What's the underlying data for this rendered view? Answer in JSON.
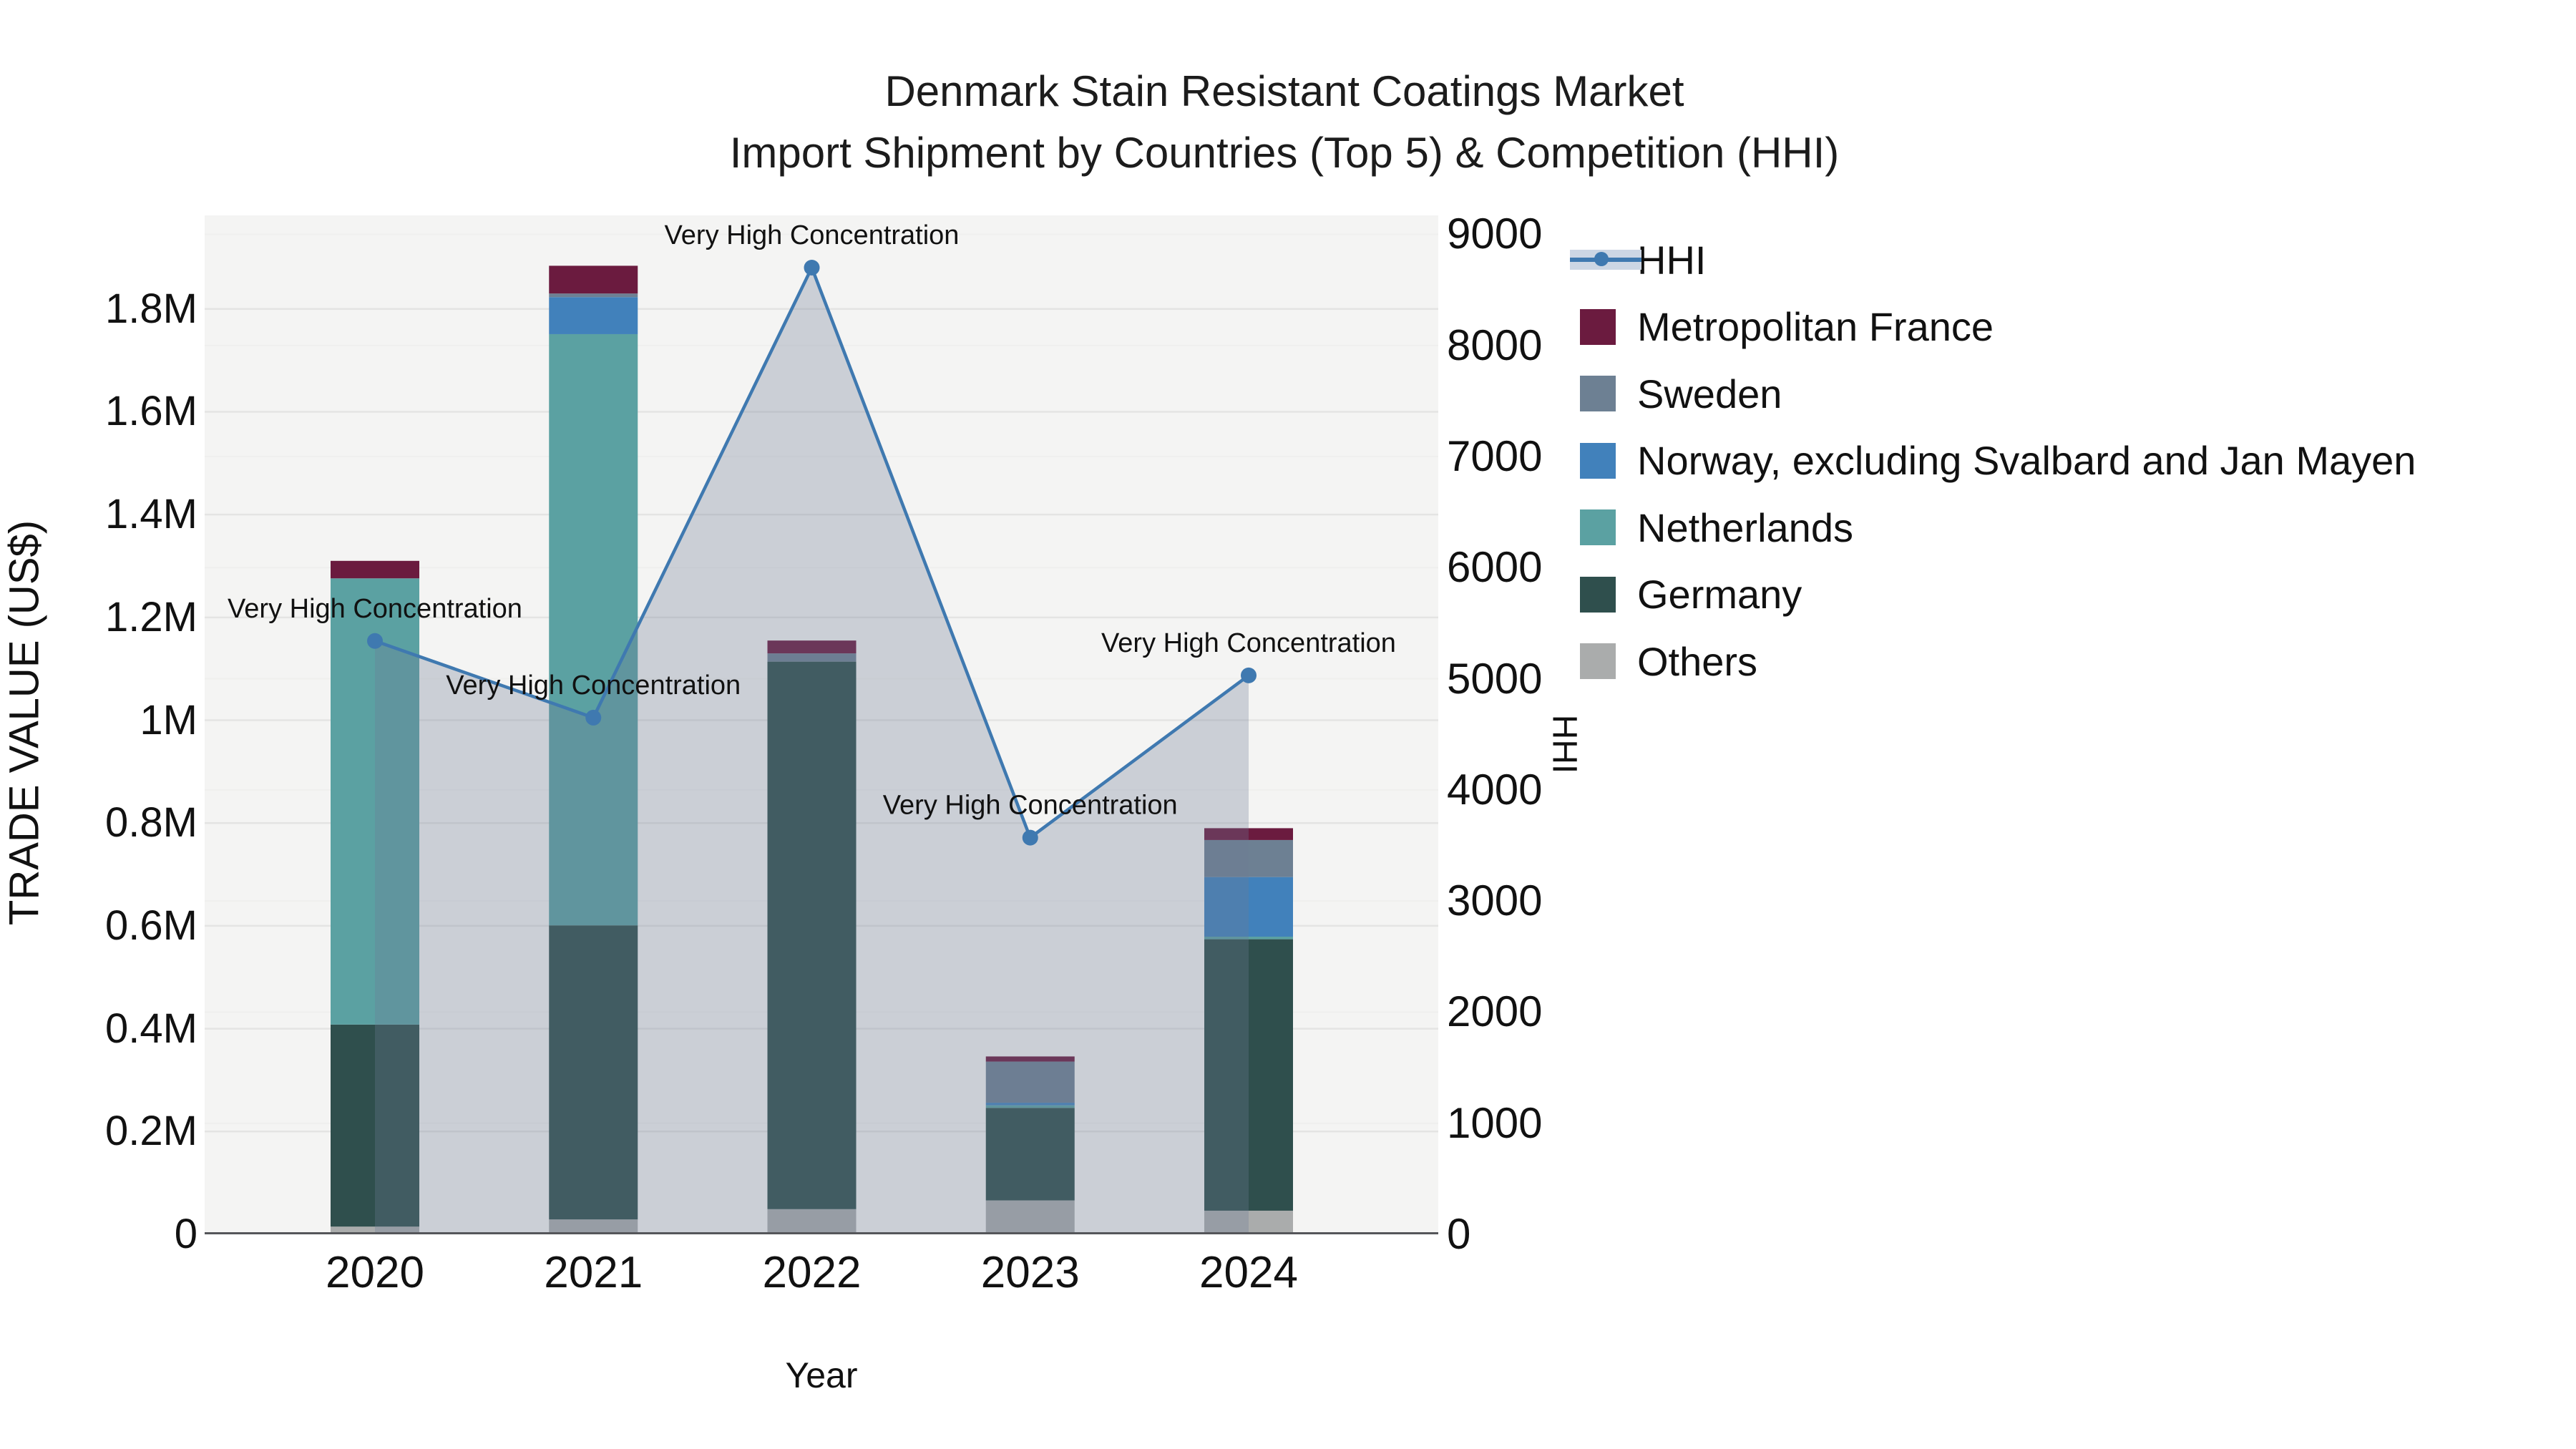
{
  "title": {
    "line1": "Denmark Stain Resistant Coatings Market",
    "line2": "Import Shipment by Countries (Top 5) & Competition (HHI)"
  },
  "axes": {
    "left": {
      "title": "TRADE VALUE (US$)",
      "ticks": [
        {
          "value": 0,
          "label": "0"
        },
        {
          "value": 200000,
          "label": "0.2M"
        },
        {
          "value": 400000,
          "label": "0.4M"
        },
        {
          "value": 600000,
          "label": "0.6M"
        },
        {
          "value": 800000,
          "label": "0.8M"
        },
        {
          "value": 1000000,
          "label": "1M"
        },
        {
          "value": 1200000,
          "label": "1.2M"
        },
        {
          "value": 1400000,
          "label": "1.4M"
        },
        {
          "value": 1600000,
          "label": "1.6M"
        },
        {
          "value": 1800000,
          "label": "1.8M"
        }
      ]
    },
    "right": {
      "title": "HHI",
      "ticks": [
        {
          "value": 0,
          "label": "0"
        },
        {
          "value": 1000,
          "label": "1000"
        },
        {
          "value": 2000,
          "label": "2000"
        },
        {
          "value": 3000,
          "label": "3000"
        },
        {
          "value": 4000,
          "label": "4000"
        },
        {
          "value": 5000,
          "label": "5000"
        },
        {
          "value": 6000,
          "label": "6000"
        },
        {
          "value": 7000,
          "label": "7000"
        },
        {
          "value": 8000,
          "label": "8000"
        },
        {
          "value": 9000,
          "label": "9000"
        }
      ]
    },
    "x": {
      "title": "Year"
    }
  },
  "legend": [
    {
      "label": "HHI",
      "type": "line",
      "color": "#3f79b0",
      "band": "#ccd6e4"
    },
    {
      "label": "Metropolitan France",
      "type": "square",
      "color": "#6b1b3f"
    },
    {
      "label": "Sweden",
      "type": "square",
      "color": "#6d8093"
    },
    {
      "label": "Norway, excluding Svalbard and Jan Mayen",
      "type": "square",
      "color": "#4181bb"
    },
    {
      "label": "Netherlands",
      "type": "square",
      "color": "#5ba1a2"
    },
    {
      "label": "Germany",
      "type": "square",
      "color": "#2f4f4d"
    },
    {
      "label": "Others",
      "type": "square",
      "color": "#aaacac"
    }
  ],
  "chart_data": {
    "type": "bar+line",
    "title": "Denmark Stain Resistant Coatings Market — Import Shipment by Countries (Top 5) & Competition (HHI)",
    "categories": [
      "2020",
      "2021",
      "2022",
      "2023",
      "2024"
    ],
    "stack_order": [
      "Others",
      "Germany",
      "Netherlands",
      "Norway, excluding Svalbard and Jan Mayen",
      "Sweden",
      "Metropolitan France"
    ],
    "series": [
      {
        "name": "Metropolitan France",
        "color": "#6b1b3f",
        "values": [
          34000,
          54000,
          25000,
          10000,
          23000
        ]
      },
      {
        "name": "Sweden",
        "color": "#6d8093",
        "values": [
          0,
          7000,
          16000,
          80000,
          72000
        ]
      },
      {
        "name": "Norway, excluding Svalbard and Jan Mayen",
        "color": "#4181bb",
        "values": [
          0,
          72000,
          0,
          5000,
          116000
        ]
      },
      {
        "name": "Netherlands",
        "color": "#5ba1a2",
        "values": [
          868000,
          1150000,
          0,
          5000,
          5000
        ]
      },
      {
        "name": "Germany",
        "color": "#2f4f4d",
        "values": [
          393000,
          572000,
          1065000,
          180000,
          528000
        ]
      },
      {
        "name": "Others",
        "color": "#aaacac",
        "values": [
          15000,
          29000,
          49000,
          66000,
          46000
        ]
      }
    ],
    "bar_totals": [
      1310000,
      1884000,
      1155000,
      346000,
      790000
    ],
    "line_series": {
      "name": "HHI",
      "color": "#3f79b0",
      "area_fill": "rgba(108,124,148,0.30)",
      "values": [
        5340,
        4650,
        8700,
        3570,
        5030
      ]
    },
    "annotations": [
      {
        "text": "Very High Concentration",
        "year_index": 0
      },
      {
        "text": "Very High Concentration",
        "year_index": 1
      },
      {
        "text": "Very High Concentration",
        "year_index": 2
      },
      {
        "text": "Very High Concentration",
        "year_index": 3
      },
      {
        "text": "Very High Concentration",
        "year_index": 4
      }
    ],
    "xlabel": "Year",
    "ylabel_left": "TRADE VALUE (US$)",
    "ylabel_right": "HHI",
    "ylim_left": [
      0,
      1982000
    ],
    "ylim_right": [
      0,
      9170
    ],
    "grid": true,
    "legend_position": "right",
    "plot_background": "#f4f4f3"
  }
}
